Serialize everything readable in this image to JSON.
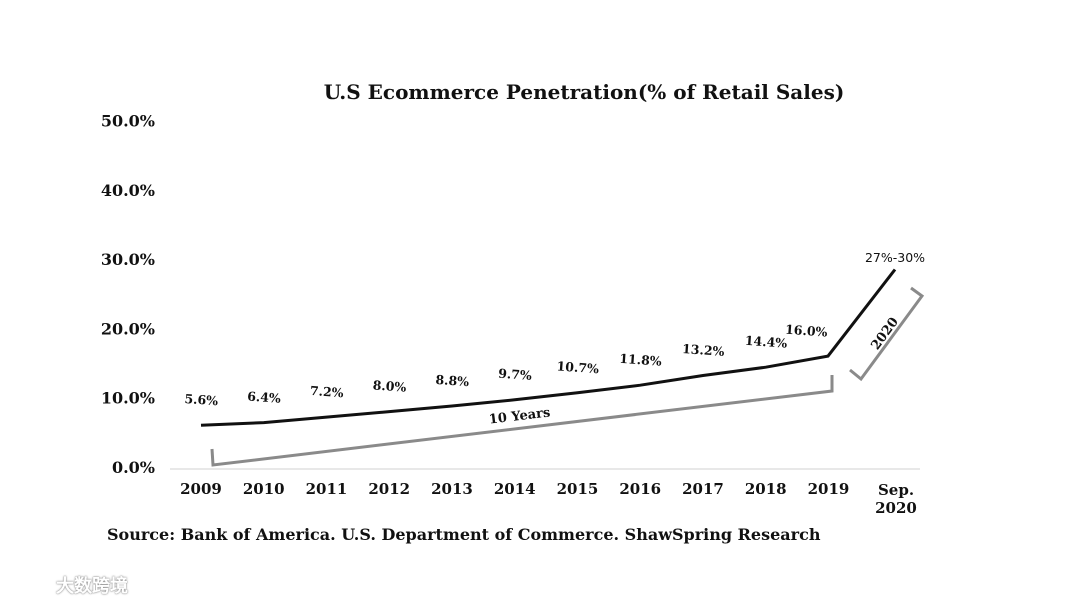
{
  "chart_data": {
    "type": "line",
    "title": "U.S Ecommerce Penetration(% of Retail Sales)",
    "xlabel": "",
    "ylabel": "",
    "ylim": [
      0,
      50
    ],
    "yticks": [
      0,
      10,
      20,
      30,
      40,
      50
    ],
    "ytick_labels": [
      "0.0%",
      "10.0%",
      "20.0%",
      "30.0%",
      "40.0%",
      "50.0%"
    ],
    "categories": [
      "2009",
      "2010",
      "2011",
      "2012",
      "2013",
      "2014",
      "2015",
      "2016",
      "2017",
      "2018",
      "2019",
      "Sep. 2020"
    ],
    "series": [
      {
        "name": "U.S Ecommerce Penetration",
        "values": [
          5.6,
          6.4,
          7.2,
          8.0,
          8.8,
          9.7,
          10.7,
          11.8,
          13.2,
          14.4,
          16.0,
          28.5
        ],
        "labels": [
          "5.6%",
          "6.4%",
          "7.2%",
          "8.0%",
          "8.8%",
          "9.7%",
          "10.7%",
          "11.8%",
          "13.2%",
          "14.4%",
          "16.0%",
          "27%-30%"
        ]
      }
    ],
    "annotations": [
      {
        "text": "10 Years",
        "span": [
          "2009",
          "2019"
        ]
      },
      {
        "text": "2020",
        "span": [
          "2019",
          "Sep. 2020"
        ]
      }
    ],
    "grid": false,
    "legend": "none"
  },
  "source": "Source: Bank of America. U.S. Department of Commerce. ShawSpring Research",
  "watermark": "大数跨境",
  "colors": {
    "line": "#111111",
    "bracket": "#8a8a8a",
    "axis": "#d0d0d0",
    "text": "#111111"
  }
}
